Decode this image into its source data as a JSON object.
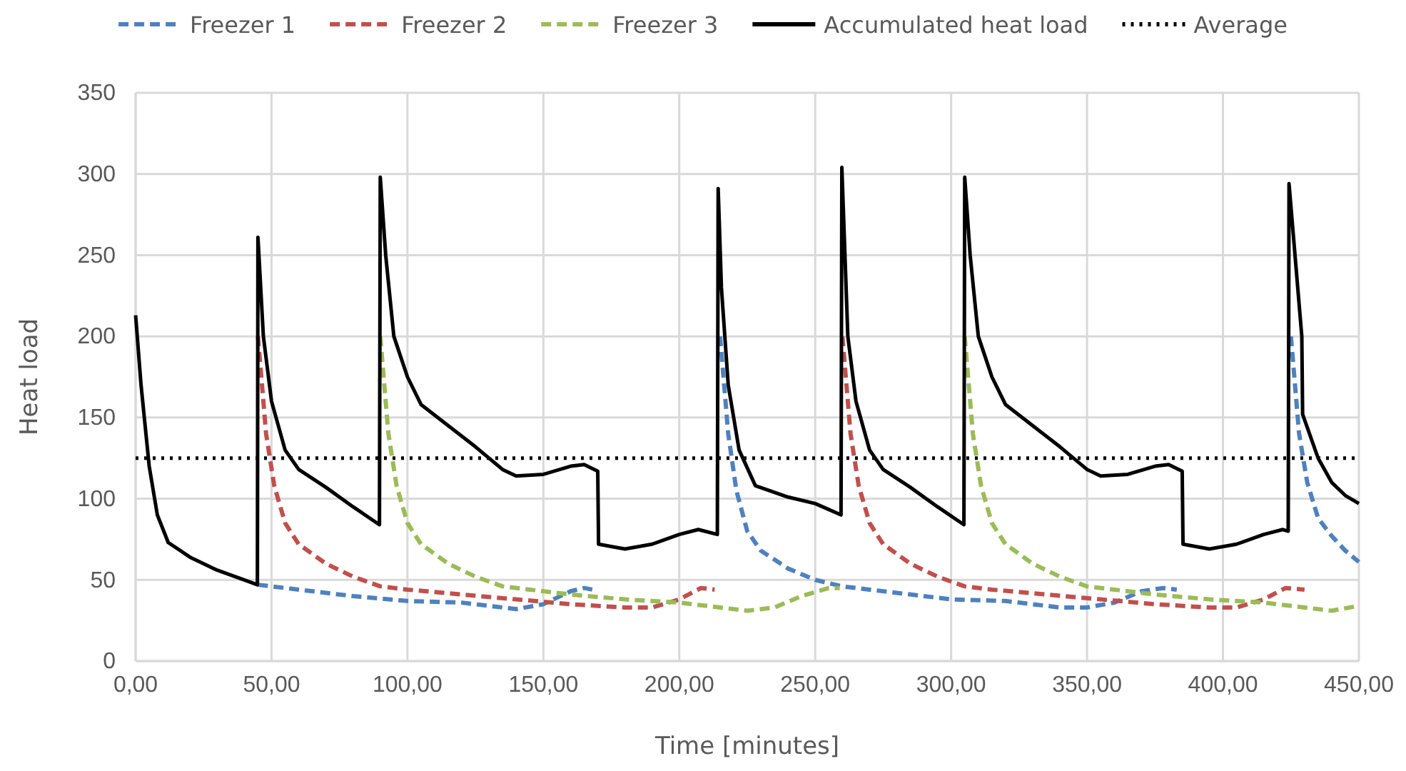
{
  "chart_data": {
    "type": "line",
    "xlabel": "Time [minutes]",
    "ylabel": "Heat load",
    "xlim": [
      0,
      450
    ],
    "xticks": [
      {
        "value": 0,
        "label": "0,00"
      },
      {
        "value": 50,
        "label": "50,00"
      },
      {
        "value": 100,
        "label": "100,00"
      },
      {
        "value": 150,
        "label": "150,00"
      },
      {
        "value": 200,
        "label": "200,00"
      },
      {
        "value": 250,
        "label": "250,00"
      },
      {
        "value": 300,
        "label": "300,00"
      },
      {
        "value": 350,
        "label": "350,00"
      },
      {
        "value": 400,
        "label": "400,00"
      },
      {
        "value": 450,
        "label": "450,00"
      }
    ],
    "ylim": [
      0,
      350
    ],
    "yticks": [
      0,
      50,
      100,
      150,
      200,
      250,
      300,
      350
    ],
    "grid": true,
    "legend": "top",
    "marker": "none",
    "series": [
      {
        "name": "Freezer 1",
        "color": "#4f81bd",
        "line_style": "dashed",
        "x": [
          45,
          60,
          80,
          100,
          120,
          140,
          150,
          160,
          165,
          168,
          190,
          215,
          218,
          221,
          225,
          230,
          240,
          250,
          260,
          280,
          300,
          320,
          340,
          350,
          360,
          370,
          378,
          383,
          400,
          425,
          428,
          431,
          435,
          440,
          445,
          450
        ],
        "values": [
          47,
          44,
          40,
          37,
          36,
          32,
          35,
          43,
          45,
          44,
          null,
          200,
          140,
          105,
          80,
          68,
          57,
          50,
          46,
          42,
          38,
          37,
          33,
          33,
          36,
          43,
          45,
          44,
          null,
          200,
          140,
          110,
          88,
          77,
          68,
          61
        ]
      },
      {
        "name": "Freezer 2",
        "color": "#c0504d",
        "line_style": "dashed",
        "x": [
          45,
          48,
          51,
          55,
          60,
          70,
          80,
          90,
          100,
          120,
          140,
          160,
          180,
          190,
          200,
          208,
          213,
          237,
          260,
          263,
          266,
          270,
          275,
          285,
          295,
          305,
          315,
          335,
          355,
          375,
          395,
          405,
          415,
          423,
          430
        ],
        "values": [
          200,
          140,
          108,
          85,
          72,
          60,
          52,
          46,
          44,
          41,
          38,
          35,
          33,
          33,
          38,
          45,
          44,
          null,
          200,
          140,
          108,
          85,
          72,
          60,
          52,
          46,
          44,
          41,
          38,
          35,
          33,
          33,
          38,
          45,
          44
        ]
      },
      {
        "name": "Freezer 3",
        "color": "#9bbb59",
        "line_style": "dashed",
        "x": [
          90,
          93,
          96,
          100,
          105,
          115,
          125,
          135,
          145,
          160,
          180,
          200,
          215,
          225,
          235,
          245,
          255,
          259,
          280,
          305,
          308,
          311,
          315,
          320,
          330,
          340,
          350,
          360,
          375,
          395,
          415,
          430,
          440,
          450
        ],
        "values": [
          200,
          140,
          108,
          85,
          72,
          60,
          52,
          46,
          44,
          41,
          38,
          36,
          33,
          31,
          33,
          40,
          45,
          45,
          null,
          200,
          140,
          108,
          85,
          72,
          60,
          52,
          46,
          44,
          41,
          38,
          36,
          33,
          31,
          34
        ]
      },
      {
        "name": "Accumulated heat load",
        "color": "#000000",
        "line_style": "solid",
        "x": [
          0,
          2,
          5,
          8,
          12,
          20,
          30,
          40,
          44.8,
          45,
          47,
          50,
          55,
          60,
          70,
          80,
          89.7,
          90,
          92,
          95,
          100,
          105,
          115,
          125,
          135,
          140,
          150,
          160,
          165,
          170,
          170.3,
          180,
          190,
          200,
          207,
          214,
          214.3,
          215.5,
          218,
          222,
          228,
          240,
          250,
          259.5,
          259.8,
          262,
          265,
          270,
          275,
          285,
          295,
          304.7,
          305,
          307,
          310,
          315,
          320,
          330,
          340,
          350,
          355,
          365,
          375,
          380,
          385,
          385.3,
          395,
          405,
          415,
          422,
          424,
          424.3,
          427,
          429,
          429.3,
          435,
          440,
          445,
          450
        ],
        "values": [
          213,
          170,
          120,
          90,
          73,
          64,
          56,
          50,
          47,
          261,
          200,
          160,
          130,
          118,
          107,
          95,
          84,
          298,
          250,
          200,
          175,
          158,
          145,
          132,
          118,
          114,
          115,
          120,
          121,
          117,
          72,
          69,
          72,
          78,
          81,
          78,
          291,
          230,
          170,
          130,
          108,
          101,
          97,
          90,
          304,
          200,
          160,
          130,
          118,
          107,
          95,
          84,
          298,
          250,
          200,
          175,
          158,
          145,
          132,
          118,
          114,
          115,
          120,
          121,
          117,
          72,
          69,
          72,
          78,
          81,
          80,
          294,
          240,
          200,
          152,
          125,
          110,
          102,
          97
        ]
      }
    ],
    "ref_lines": [
      {
        "axis": "y",
        "value": 125,
        "label": "Average",
        "color": "#000000",
        "line_style": "dotted"
      }
    ]
  }
}
